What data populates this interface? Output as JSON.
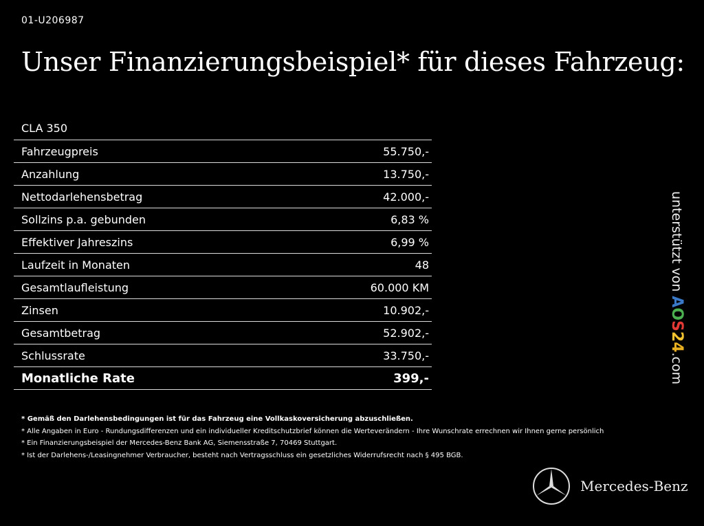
{
  "vehicle_id": "01-U206987",
  "title": "Unser Finanzierungsbeispiel* für dieses Fahrzeug:",
  "model": "CLA 350",
  "rows": [
    {
      "label": "Fahrzeugpreis",
      "value": "55.750,-"
    },
    {
      "label": "Anzahlung",
      "value": "13.750,-"
    },
    {
      "label": "Nettodarlehensbetrag",
      "value": "42.000,-"
    },
    {
      "label": "Sollzins p.a. gebunden",
      "value": "6,83 %"
    },
    {
      "label": "Effektiver Jahreszins",
      "value": "6,99 %"
    },
    {
      "label": "Laufzeit in Monaten",
      "value": "48"
    },
    {
      "label": "Gesamtlaufleistung",
      "value": "60.000 KM"
    },
    {
      "label": "Zinsen",
      "value": "10.902,-"
    },
    {
      "label": "Gesamtbetrag",
      "value": "52.902,-"
    },
    {
      "label": "Schlussrate",
      "value": "33.750,-"
    },
    {
      "label": "Monatliche Rate",
      "value": "399,-"
    }
  ],
  "footnotes": [
    "* Gemäß den Darlehensbedingungen ist für das Fahrzeug eine Vollkaskoversicherung abzuschließen.",
    "* Alle Angaben in Euro - Rundungsdifferenzen und ein individueller Kreditschutzbrief können die Werteverändern - Ihre Wunschrate errechnen wir Ihnen gerne persönlich",
    "* Ein Finanzierungsbeispiel der Mercedes-Benz Bank AG, Siemensstraße 7, 70469 Stuttgart.",
    "* Ist der Darlehens-/Leasingnehmer Verbraucher, besteht nach Vertragsschluss ein gesetzliches Widerrufsrecht nach § 495 BGB."
  ],
  "side_credit": {
    "prefix": "unterstützt von ",
    "logo": [
      "A",
      "O",
      "S",
      "2",
      "4"
    ],
    "suffix": ".com"
  },
  "brand": {
    "name": "Mercedes-Benz",
    "logo_icon": "mercedes-star-icon"
  }
}
